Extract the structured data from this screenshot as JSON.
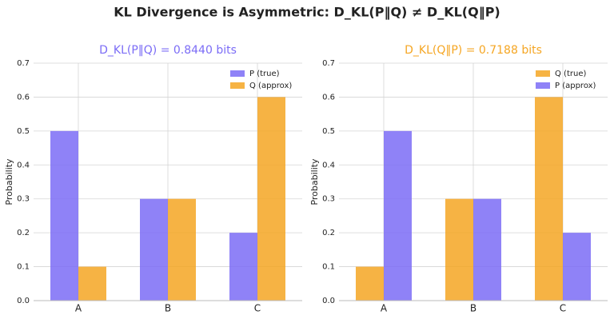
{
  "title": "KL Divergence is Asymmetric: D_KL(P‖Q) ≠ D_KL(Q‖P)",
  "chart_data": [
    {
      "type": "bar",
      "title": "D_KL(P‖Q) = 0.8440 bits",
      "title_color": "#7b6cf6",
      "ylabel": "Probability",
      "categories": [
        "A",
        "B",
        "C"
      ],
      "series": [
        {
          "name": "P (true)",
          "color": "#7b6cf6",
          "values": [
            0.5,
            0.3,
            0.2
          ]
        },
        {
          "name": "Q (approx)",
          "color": "#f5a623",
          "values": [
            0.1,
            0.3,
            0.6
          ]
        }
      ],
      "ylim": [
        0,
        0.7
      ],
      "yticks": [
        {
          "value": 0,
          "label": "0.0"
        },
        0.1,
        0.2,
        0.3,
        0.4,
        0.5,
        0.6,
        0.7
      ],
      "grid": true,
      "legend": "upper-right"
    },
    {
      "type": "bar",
      "title": "D_KL(Q‖P) = 0.7188 bits",
      "title_color": "#f5a623",
      "ylabel": "Probability",
      "categories": [
        "A",
        "B",
        "C"
      ],
      "series": [
        {
          "name": "Q (true)",
          "color": "#f5a623",
          "values": [
            0.1,
            0.3,
            0.6
          ]
        },
        {
          "name": "P (approx)",
          "color": "#7b6cf6",
          "values": [
            0.5,
            0.3,
            0.2
          ]
        }
      ],
      "ylim": [
        0,
        0.7
      ],
      "yticks": [
        {
          "value": 0,
          "label": "0.0"
        },
        0.1,
        0.2,
        0.3,
        0.4,
        0.5,
        0.6,
        0.7
      ],
      "grid": true,
      "legend": "upper-right"
    }
  ]
}
